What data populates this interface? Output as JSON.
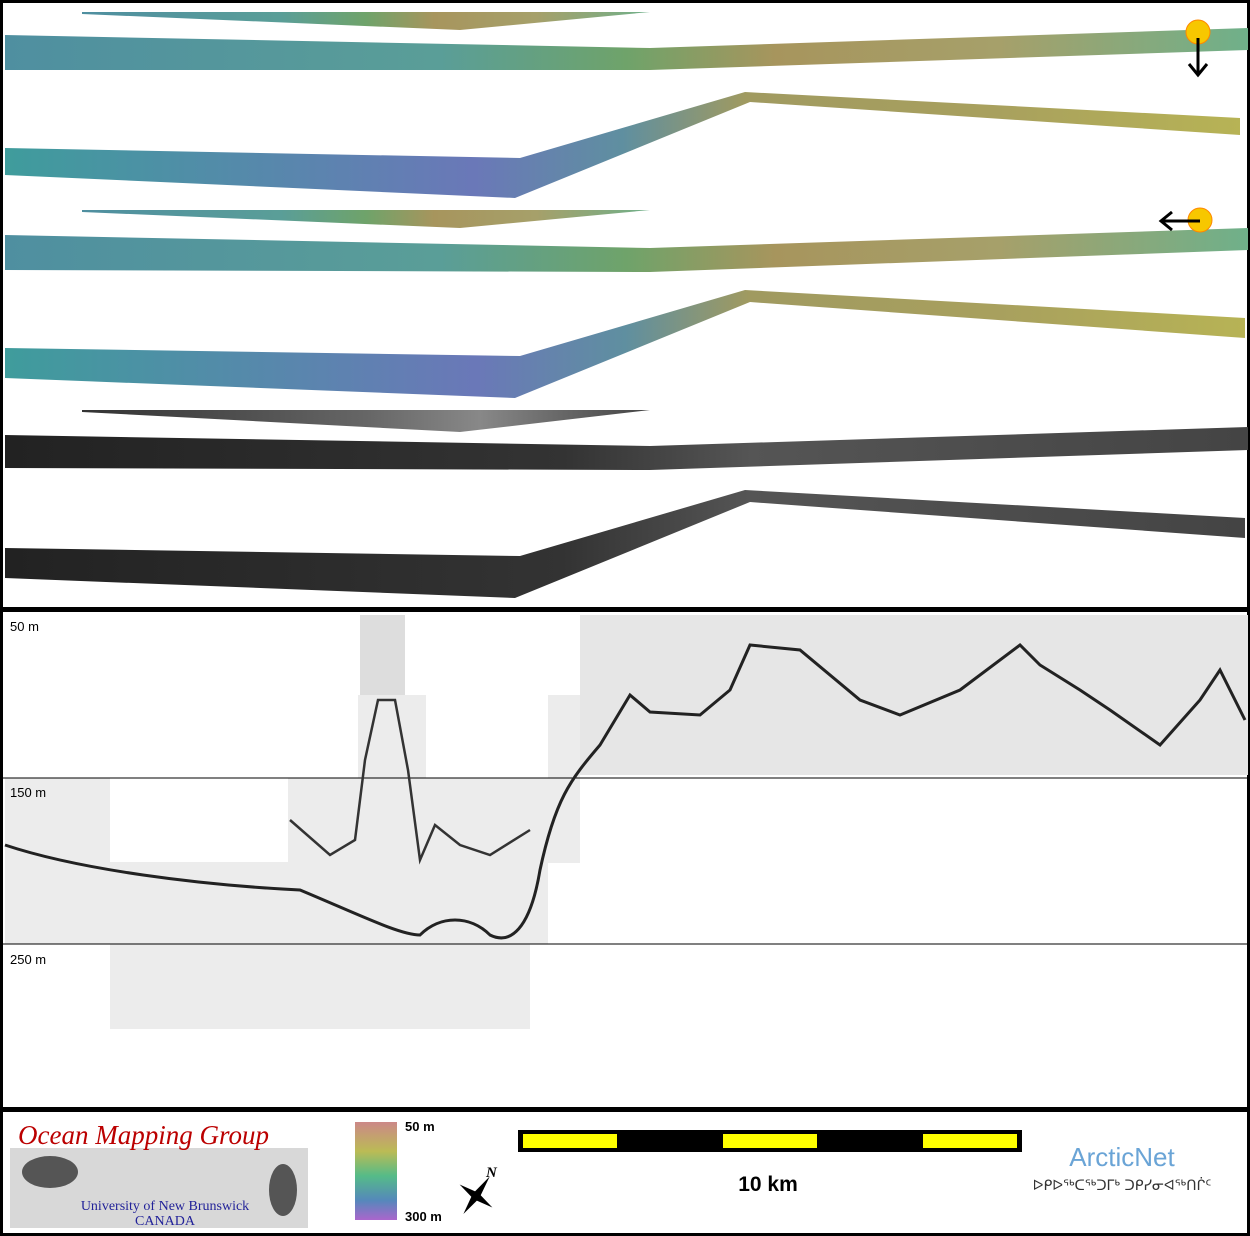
{
  "profile": {
    "depth_labels": [
      "50 m",
      "150 m",
      "250 m"
    ]
  },
  "footer": {
    "logo": {
      "title": "Ocean Mapping Group",
      "institution": "University of New Brunswick",
      "country": "CANADA"
    },
    "color_scale": {
      "top_label": "50 m",
      "bottom_label": "300 m"
    },
    "compass": "N",
    "scale_bar": "10 km",
    "partner": {
      "name": "ArcticNet",
      "native_name": "ᐅᑭᐅᖅᑕᖅᑐᒥᒃ ᑐᑭᓯᓂᐊᖅᑎᒌᑦ"
    }
  }
}
